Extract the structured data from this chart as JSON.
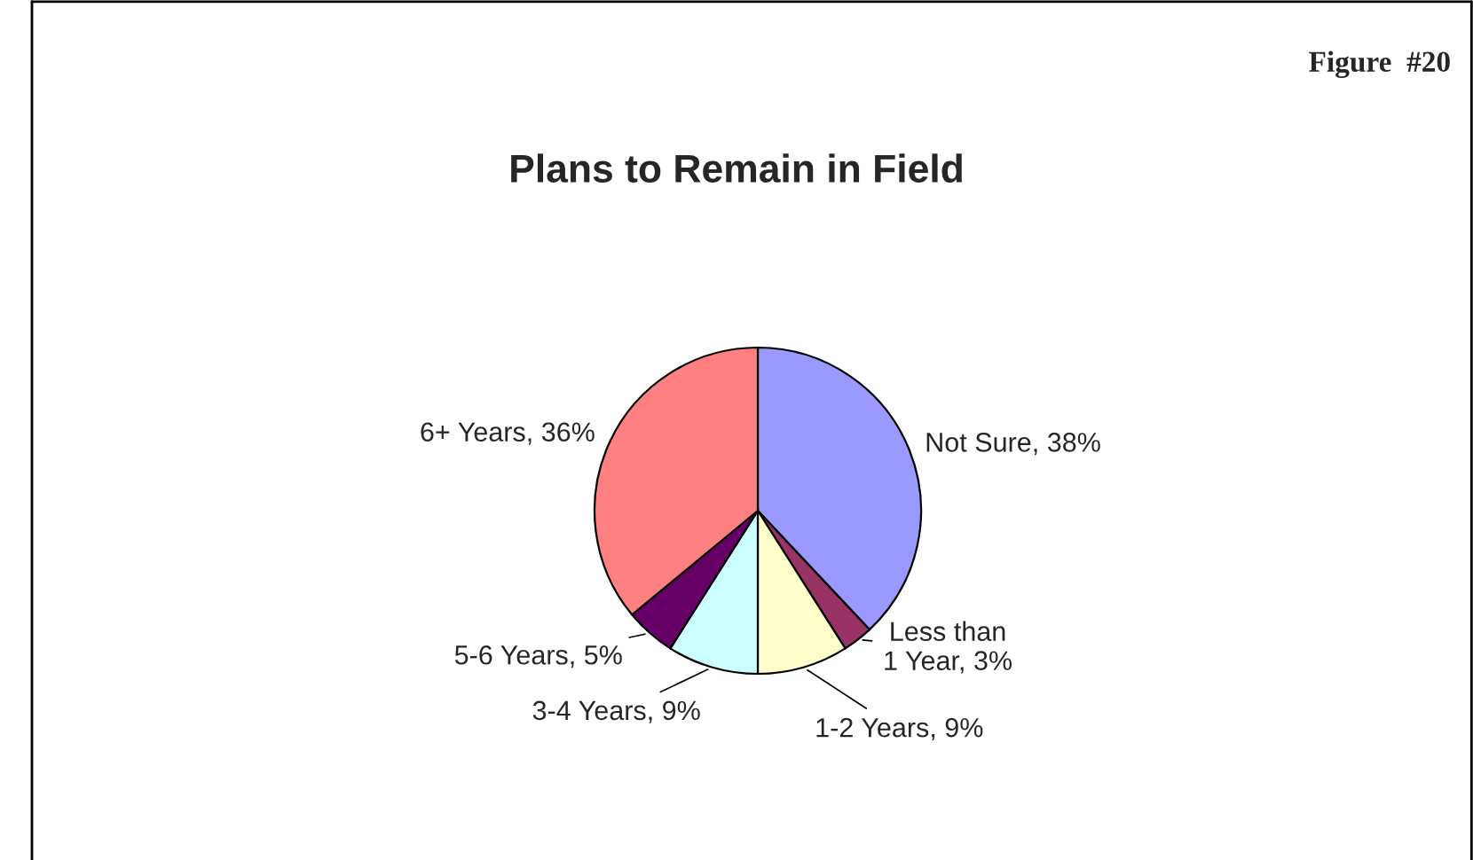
{
  "chart_data": {
    "type": "pie",
    "title": "Plans to Remain in Field",
    "annotations": [
      "Figure  #20"
    ],
    "categories": [
      "Not Sure",
      "Less than 1 Year",
      "1-2 Years",
      "3-4 Years",
      "5-6 Years",
      "6+ Years"
    ],
    "values": [
      38,
      3,
      9,
      9,
      5,
      36
    ],
    "value_labels": [
      "38%",
      "3%",
      "9%",
      "9%",
      "5%",
      "36%"
    ],
    "colors": [
      "#9999ff",
      "#993366",
      "#ffffcc",
      "#ccffff",
      "#660066",
      "#ff8080"
    ]
  }
}
